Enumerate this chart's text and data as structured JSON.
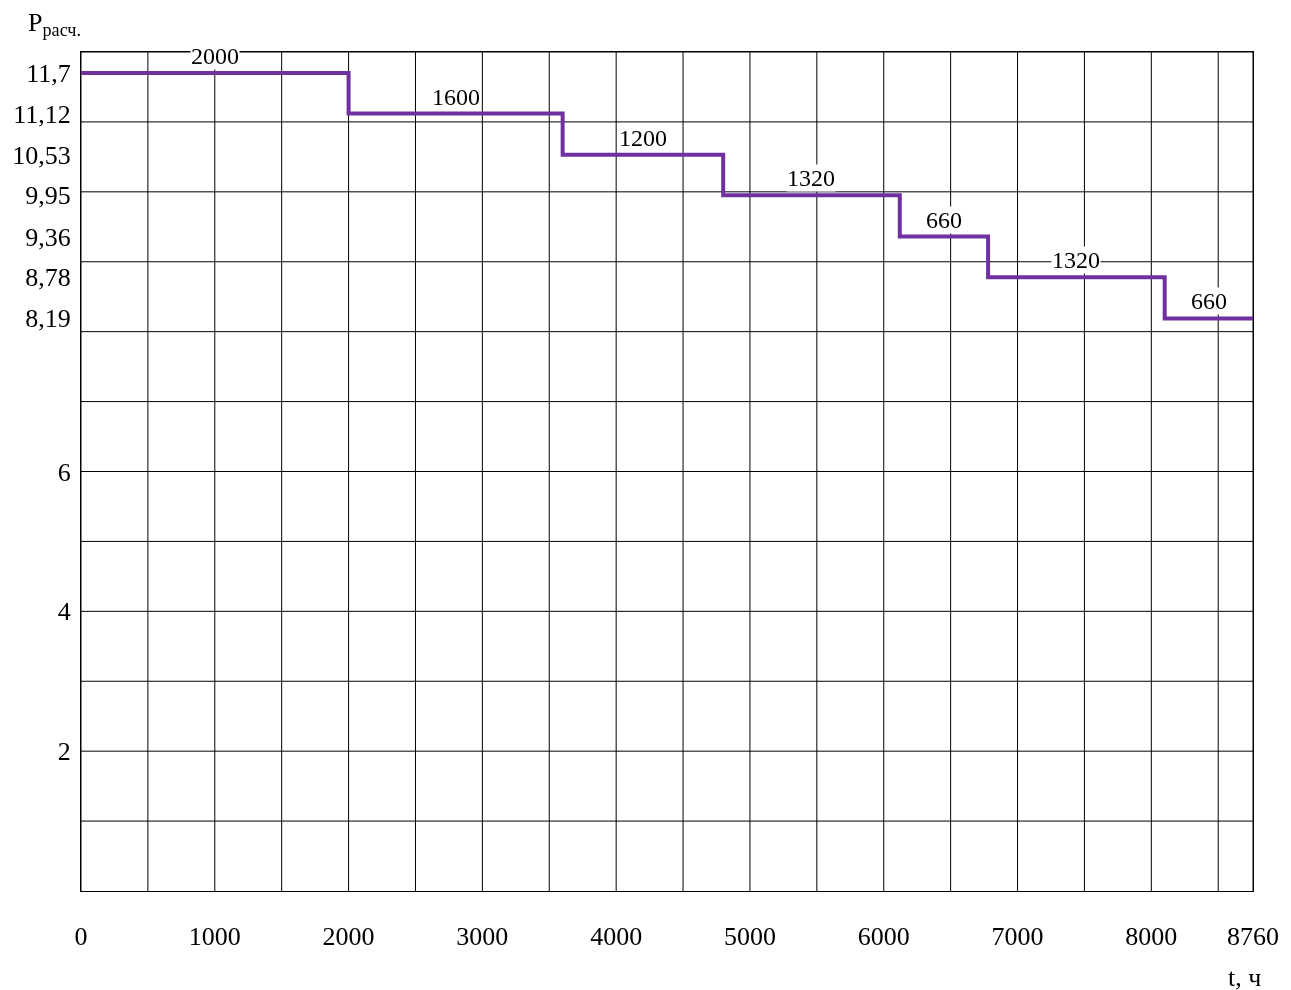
{
  "chart_data": {
    "type": "step",
    "xlabel": "t, ч",
    "ylabel": "P$_{расч.}$",
    "x": [
      0,
      2000,
      3600,
      4800,
      6120,
      6780,
      8100,
      8760
    ],
    "series": [
      {
        "color": "#7030a0",
        "values": [
          11.7,
          11.12,
          10.53,
          9.95,
          9.36,
          8.78,
          8.19,
          8.19
        ]
      }
    ],
    "xlim": [
      0,
      8760
    ],
    "ylim": [
      0,
      12
    ],
    "xticks": [
      0,
      {
        "value": 500,
        "label": null
      },
      1000,
      {
        "value": 1500,
        "label": null
      },
      2000,
      {
        "value": 2500,
        "label": null
      },
      3000,
      {
        "value": 3500,
        "label": null
      },
      4000,
      {
        "value": 4500,
        "label": null
      },
      5000,
      {
        "value": 5500,
        "label": null
      },
      6000,
      {
        "value": 6500,
        "label": null
      },
      7000,
      {
        "value": 7500,
        "label": null
      },
      8000,
      {
        "value": 8500,
        "label": null
      },
      8760
    ],
    "yticks": [
      {
        "value": 1,
        "label": null
      },
      2,
      {
        "value": 3,
        "label": null
      },
      4,
      {
        "value": 5,
        "label": null
      },
      6,
      {
        "value": 7,
        "label": null
      },
      {
        "value": 8,
        "label": null
      },
      {
        "value": 8.19,
        "label": "8,19"
      },
      {
        "value": 8.78,
        "label": "8,78"
      },
      {
        "value": 9,
        "label": null
      },
      {
        "value": 9.36,
        "label": "9,36"
      },
      {
        "value": 9.95,
        "label": "9,95"
      },
      {
        "value": 10,
        "label": null
      },
      {
        "value": 10.53,
        "label": "10,53"
      },
      {
        "value": 11,
        "label": null
      },
      {
        "value": 11.12,
        "label": "11,12"
      },
      {
        "value": 11.7,
        "label": "11,7"
      },
      {
        "value": 12,
        "label": null
      }
    ],
    "grid": true,
    "line_style": "solid",
    "marker": "none",
    "annotations": [
      {
        "text": "2000",
        "x": 1000,
        "y": 11.7
      },
      {
        "text": "1600",
        "x": 2800,
        "y": 11.12
      },
      {
        "text": "1200",
        "x": 4200,
        "y": 10.53
      },
      {
        "text": "1320",
        "x": 5460,
        "y": 9.95
      },
      {
        "text": "660",
        "x": 6450,
        "y": 9.36
      },
      {
        "text": "1320",
        "x": 7440,
        "y": 8.78
      },
      {
        "text": "660",
        "x": 8430,
        "y": 8.19
      }
    ]
  }
}
